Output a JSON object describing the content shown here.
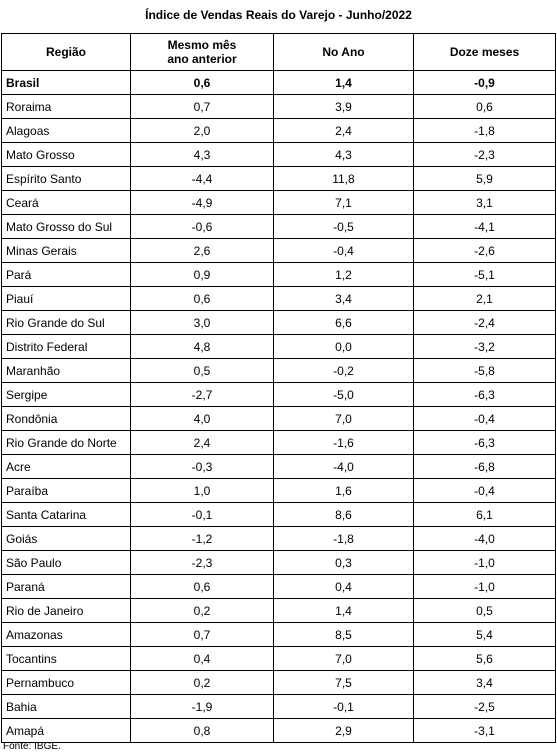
{
  "title": "Índice de Vendas Reais do Varejo - Junho/2022",
  "table": {
    "header": [
      "Região",
      "Mesmo mês\nano anterior",
      "No Ano",
      "Doze meses"
    ],
    "rows": [
      [
        "Brasil",
        "0,6",
        "1,4",
        "-0,9"
      ],
      [
        "Roraima",
        "0,7",
        "3,9",
        "0,6"
      ],
      [
        "Alagoas",
        "2,0",
        "2,4",
        "-1,8"
      ],
      [
        "Mato Grosso",
        "4,3",
        "4,3",
        "-2,3"
      ],
      [
        "Espírito Santo",
        "-4,4",
        "11,8",
        "5,9"
      ],
      [
        "Ceará",
        "-4,9",
        "7,1",
        "3,1"
      ],
      [
        "Mato Grosso do Sul",
        "-0,6",
        "-0,5",
        "-4,1"
      ],
      [
        "Minas Gerais",
        "2,6",
        "-0,4",
        "-2,6"
      ],
      [
        "Pará",
        "0,9",
        "1,2",
        "-5,1"
      ],
      [
        "Piauí",
        "0,6",
        "3,4",
        "2,1"
      ],
      [
        "Rio Grande do Sul",
        "3,0",
        "6,6",
        "-2,4"
      ],
      [
        "Distrito Federal",
        "4,8",
        "0,0",
        "-3,2"
      ],
      [
        "Maranhão",
        "0,5",
        "-0,2",
        "-5,8"
      ],
      [
        "Sergipe",
        "-2,7",
        "-5,0",
        "-6,3"
      ],
      [
        "Rondônia",
        "4,0",
        "7,0",
        "-0,4"
      ],
      [
        "Rio Grande do Norte",
        "2,4",
        "-1,6",
        "-6,3"
      ],
      [
        "Acre",
        "-0,3",
        "-4,0",
        "-6,8"
      ],
      [
        "Paraíba",
        "1,0",
        "1,6",
        "-0,4"
      ],
      [
        "Santa Catarina",
        "-0,1",
        "8,6",
        "6,1"
      ],
      [
        "Goiás",
        "-1,2",
        "-1,8",
        "-4,0"
      ],
      [
        "São Paulo",
        "-2,3",
        "0,3",
        "-1,0"
      ],
      [
        "Paraná",
        "0,6",
        "0,4",
        "-1,0"
      ],
      [
        "Rio de Janeiro",
        "0,2",
        "1,4",
        "0,5"
      ],
      [
        "Amazonas",
        "0,7",
        "8,5",
        "5,4"
      ],
      [
        "Tocantins",
        "0,4",
        "7,0",
        "5,6"
      ],
      [
        "Pernambuco",
        "0,2",
        "7,5",
        "3,4"
      ],
      [
        "Bahia",
        "-1,9",
        "-0,1",
        "-2,5"
      ],
      [
        "Amapá",
        "0,8",
        "2,9",
        "-3,1"
      ]
    ]
  },
  "footer": "Fonte: IBGE."
}
